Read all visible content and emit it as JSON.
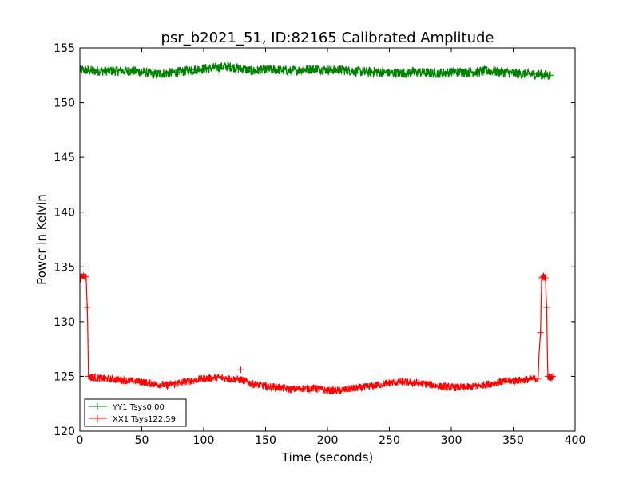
{
  "chart_data": {
    "type": "line",
    "title": "psr_b2021_51, ID:82165 Calibrated Amplitude",
    "xlabel": "Time (seconds)",
    "ylabel": "Power in Kelvin",
    "xlim": [
      0,
      400
    ],
    "ylim": [
      120,
      155
    ],
    "xticks": [
      "0",
      "50",
      "100",
      "150",
      "200",
      "250",
      "300",
      "350",
      "400"
    ],
    "yticks": [
      "120",
      "125",
      "130",
      "135",
      "140",
      "145",
      "150",
      "155"
    ],
    "grid": false,
    "legend": {
      "placement": "lower-left"
    },
    "series": [
      {
        "name": "YY1 Tsys0.00",
        "color": "#008000",
        "marker": "+",
        "noise": 0.45,
        "x": [
          0,
          10,
          20,
          30,
          40,
          50,
          60,
          70,
          80,
          90,
          100,
          110,
          120,
          130,
          140,
          150,
          160,
          170,
          180,
          190,
          200,
          210,
          220,
          230,
          240,
          250,
          260,
          270,
          280,
          290,
          300,
          310,
          320,
          330,
          340,
          350,
          360,
          370,
          380
        ],
        "values": [
          153.0,
          152.9,
          152.9,
          152.9,
          152.9,
          152.8,
          152.6,
          152.7,
          152.8,
          153.0,
          153.1,
          153.2,
          153.3,
          153.1,
          152.9,
          153.0,
          153.0,
          152.9,
          153.0,
          153.1,
          153.0,
          153.0,
          152.9,
          152.8,
          152.8,
          152.7,
          152.7,
          152.8,
          152.7,
          152.7,
          152.8,
          152.8,
          152.8,
          152.9,
          152.8,
          152.7,
          152.6,
          152.6,
          152.5
        ]
      },
      {
        "name": "XX1 Tsys122.59",
        "color": "#ff0000",
        "marker": "+",
        "noise": 0.35,
        "x": [
          0,
          3,
          5,
          6,
          7,
          10,
          20,
          30,
          40,
          50,
          60,
          70,
          80,
          90,
          100,
          110,
          120,
          130,
          140,
          150,
          160,
          170,
          180,
          190,
          200,
          210,
          220,
          230,
          240,
          250,
          260,
          270,
          280,
          290,
          300,
          310,
          320,
          330,
          340,
          350,
          360,
          370,
          372,
          373,
          374,
          376,
          377,
          378,
          380,
          382
        ],
        "values": [
          134.0,
          134.2,
          134.1,
          131.3,
          125.0,
          124.9,
          124.8,
          124.7,
          124.6,
          124.5,
          124.3,
          124.2,
          124.4,
          124.6,
          124.8,
          124.9,
          124.8,
          124.7,
          124.3,
          124.1,
          124.0,
          123.8,
          123.9,
          123.9,
          123.7,
          123.7,
          123.9,
          124.0,
          124.2,
          124.4,
          124.5,
          124.4,
          124.3,
          124.1,
          124.0,
          124.0,
          124.1,
          124.3,
          124.5,
          124.6,
          124.7,
          124.8,
          129.0,
          134.0,
          134.1,
          134.0,
          131.3,
          125.0,
          124.9,
          125.0
        ]
      }
    ]
  }
}
